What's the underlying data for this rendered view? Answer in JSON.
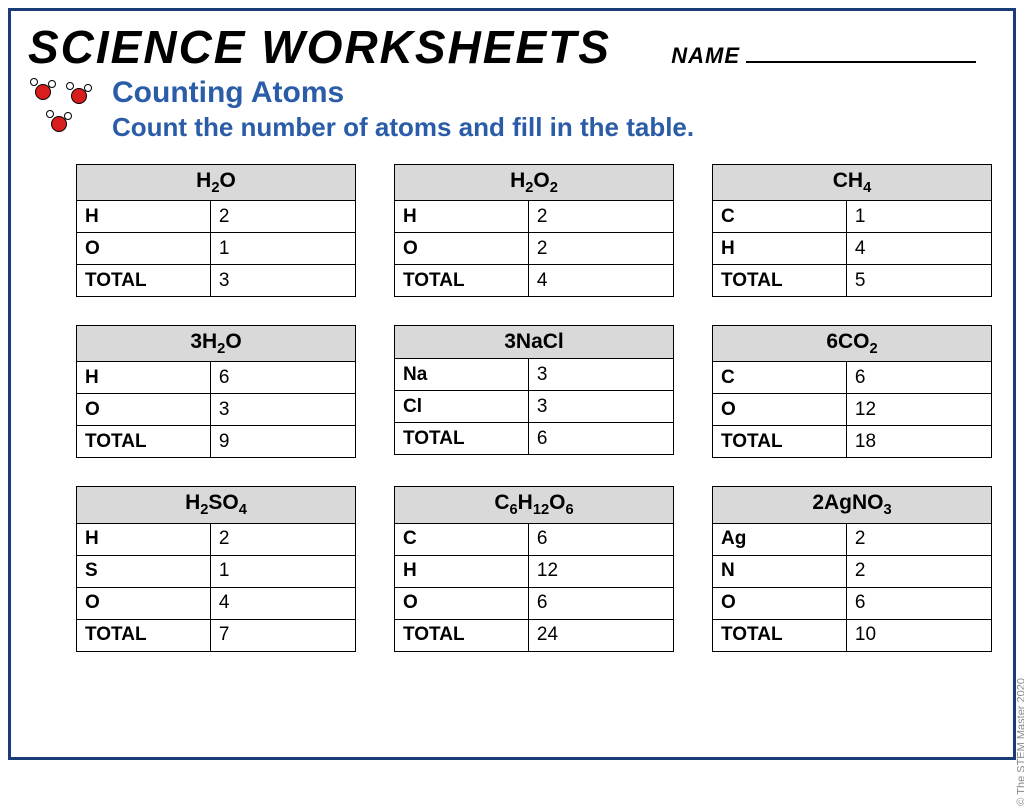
{
  "header": {
    "title": "SCIENCE WORKSHEETS",
    "name_label": "NAME"
  },
  "subheader": {
    "subtitle": "Counting Atoms",
    "instruction": "Count the number of atoms and fill in the table."
  },
  "colors": {
    "border": "#1a3d7a",
    "accent_text": "#2a5ca8",
    "table_header_bg": "#d9d9d9",
    "molecule_red": "#d91c1c"
  },
  "copyright": "© The STEM Master 2020",
  "cards": [
    {
      "formula_html": "H<sub>2</sub>O",
      "rows": [
        [
          "H",
          "2"
        ],
        [
          "O",
          "1"
        ],
        [
          "TOTAL",
          "3"
        ]
      ]
    },
    {
      "formula_html": "H<sub>2</sub>O<sub>2</sub>",
      "rows": [
        [
          "H",
          "2"
        ],
        [
          "O",
          "2"
        ],
        [
          "TOTAL",
          "4"
        ]
      ]
    },
    {
      "formula_html": "CH<sub>4</sub>",
      "rows": [
        [
          "C",
          "1"
        ],
        [
          "H",
          "4"
        ],
        [
          "TOTAL",
          "5"
        ]
      ]
    },
    {
      "formula_html": "3H<sub>2</sub>O",
      "rows": [
        [
          "H",
          "6"
        ],
        [
          "O",
          "3"
        ],
        [
          "TOTAL",
          "9"
        ]
      ]
    },
    {
      "formula_html": "3NaCl",
      "rows": [
        [
          "Na",
          "3"
        ],
        [
          "Cl",
          "3"
        ],
        [
          "TOTAL",
          "6"
        ]
      ]
    },
    {
      "formula_html": "6CO<sub>2</sub>",
      "rows": [
        [
          "C",
          "6"
        ],
        [
          "O",
          "12"
        ],
        [
          "TOTAL",
          "18"
        ]
      ]
    },
    {
      "formula_html": "H<sub>2</sub>SO<sub>4</sub>",
      "rows": [
        [
          "H",
          "2"
        ],
        [
          "S",
          "1"
        ],
        [
          "O",
          "4"
        ],
        [
          "TOTAL",
          "7"
        ]
      ]
    },
    {
      "formula_html": "C<sub>6</sub>H<sub>12</sub>O<sub>6</sub>",
      "rows": [
        [
          "C",
          "6"
        ],
        [
          "H",
          "12"
        ],
        [
          "O",
          "6"
        ],
        [
          "TOTAL",
          "24"
        ]
      ]
    },
    {
      "formula_html": "2AgNO<sub>3</sub>",
      "rows": [
        [
          "Ag",
          "2"
        ],
        [
          "N",
          "2"
        ],
        [
          "O",
          "6"
        ],
        [
          "TOTAL",
          "10"
        ]
      ]
    }
  ]
}
